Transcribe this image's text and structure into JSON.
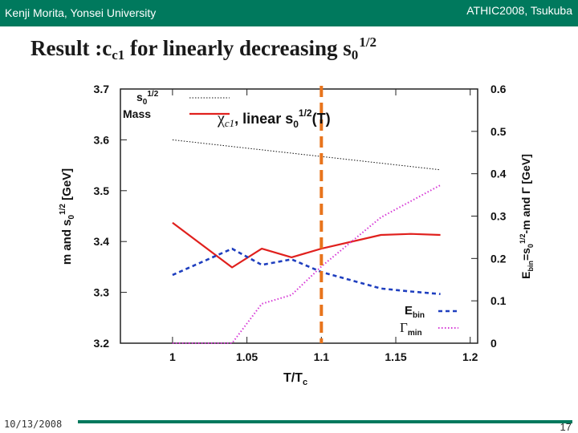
{
  "header": {
    "left": "Kenji Morita, Yonsei University",
    "right": "ATHIC2008, Tsukuba"
  },
  "title": {
    "prefix": "Result :c",
    "sub": "c1",
    "middle": " for linearly decreasing s",
    "sub2": "0",
    "sup": "1/2"
  },
  "footer": {
    "date": "10/13/2008",
    "page": "17"
  },
  "colors": {
    "header_bg": "#00795d",
    "mass": "#e0201d",
    "s0": "#111111",
    "ebin": "#1f3fbf",
    "gamma": "#d639d6",
    "tc_line": "#e8741c"
  },
  "chart_data": {
    "type": "line",
    "xlabel": "T/Tc",
    "ylabel_left": "m and s0^1/2 [GeV]",
    "ylabel_right": "Ebin=s0^1/2-m and Γ [GeV]",
    "x_ticks": [
      "1",
      "1.05",
      "1.1",
      "1.15",
      "1.2"
    ],
    "xlim": [
      0.965,
      1.205
    ],
    "y_left_ticks": [
      "3.2",
      "3.3",
      "3.4",
      "3.5",
      "3.6",
      "3.7"
    ],
    "y_left_lim": [
      3.2,
      3.7
    ],
    "y_right_ticks": [
      "0",
      "0.1",
      "0.2",
      "0.3",
      "0.4",
      "0.5",
      "0.6"
    ],
    "y_right_lim": [
      0,
      0.6
    ],
    "vertical_line_x": 1.1,
    "annotation": "χc1, linear s0^1/2(T)",
    "legend": {
      "s0": "s0^1/2",
      "mass": "Mass",
      "ebin": "Ebin",
      "gamma": "Γmin"
    },
    "series": [
      {
        "name": "s0^1/2",
        "axis": "left",
        "style": "dotted",
        "x": [
          1.0,
          1.18
        ],
        "y": [
          3.6,
          3.541
        ]
      },
      {
        "name": "Mass",
        "axis": "left",
        "style": "solid",
        "x": [
          1.0,
          1.04,
          1.06,
          1.08,
          1.1,
          1.14,
          1.16,
          1.18
        ],
        "y": [
          3.437,
          3.349,
          3.386,
          3.369,
          3.386,
          3.413,
          3.415,
          3.413
        ]
      },
      {
        "name": "Ebin",
        "axis": "right",
        "style": "dashed",
        "x": [
          1.0,
          1.04,
          1.06,
          1.08,
          1.1,
          1.14,
          1.16,
          1.18
        ],
        "y": [
          0.161,
          0.223,
          0.185,
          0.198,
          0.168,
          0.129,
          0.122,
          0.116
        ]
      },
      {
        "name": "Γmin",
        "axis": "right",
        "style": "dotted",
        "x": [
          1.0,
          1.04,
          1.06,
          1.08,
          1.1,
          1.14,
          1.18
        ],
        "y": [
          0.0,
          0.0,
          0.093,
          0.114,
          0.181,
          0.297,
          0.373
        ]
      }
    ]
  }
}
